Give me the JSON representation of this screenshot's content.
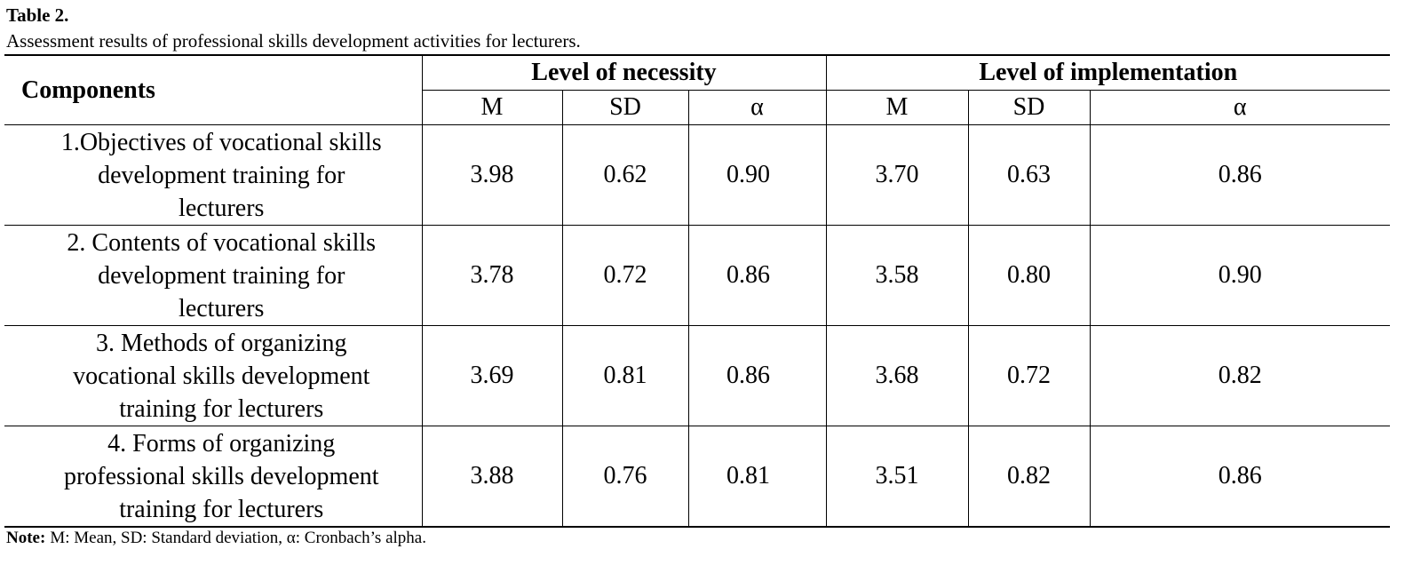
{
  "title": "Table 2.",
  "caption": "Assessment results of professional skills development activities for lecturers.",
  "table": {
    "header": {
      "components": "Components",
      "groups": [
        "Level of necessity",
        "Level of implementation"
      ],
      "subheaders": [
        "M",
        "SD",
        "α",
        "M",
        "SD",
        "α"
      ]
    },
    "rows": [
      {
        "label": [
          "1.Objectives of vocational skills",
          "development training for",
          "lecturers"
        ],
        "values": [
          "3.98",
          "0.62",
          "0.90",
          "3.70",
          "0.63",
          "0.86"
        ]
      },
      {
        "label": [
          "2. Contents of vocational skills",
          "development training for",
          "lecturers"
        ],
        "values": [
          "3.78",
          "0.72",
          "0.86",
          "3.58",
          "0.80",
          "0.90"
        ]
      },
      {
        "label": [
          "3. Methods of organizing",
          "vocational skills development",
          "training for lecturers"
        ],
        "values": [
          "3.69",
          "0.81",
          "0.86",
          "3.68",
          "0.72",
          "0.82"
        ]
      },
      {
        "label": [
          "4. Forms of organizing",
          "professional skills development",
          "training for lecturers"
        ],
        "values": [
          "3.88",
          "0.76",
          "0.81",
          "3.51",
          "0.82",
          "0.86"
        ]
      }
    ]
  },
  "note": {
    "label": "Note:",
    "text": "M: Mean, SD: Standard deviation, α: Cronbach’s alpha."
  }
}
